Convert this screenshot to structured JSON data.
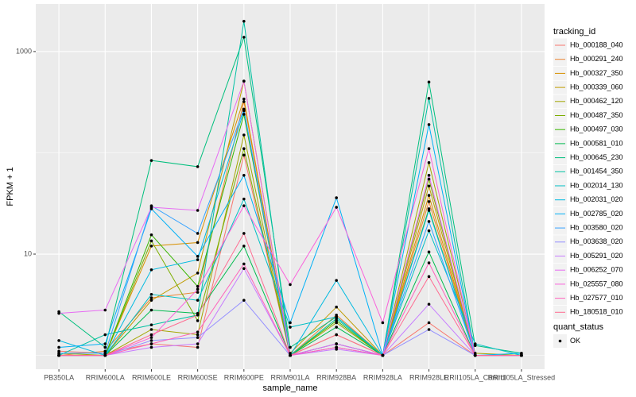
{
  "chart_data": {
    "type": "line",
    "x_label": "sample_name",
    "y_label": "FPKM + 1",
    "categories": [
      "PB350LA",
      "RRIM600LA",
      "RRIM600LE",
      "RRIM600SE",
      "RRIM600PE",
      "RRIM901LA",
      "RRIM928BA",
      "RRIM928LA",
      "RRIM928LE",
      "RRII105LA_Control",
      "RRII105LA_Stressed"
    ],
    "y_scale": "log",
    "ylim": [
      0.73,
      2950
    ],
    "yticks": [
      10,
      1000
    ],
    "grid": true,
    "point_color": "#000000",
    "legend_position": "right",
    "legend_title": "tracking_id",
    "status_legend": {
      "title": "quant_status",
      "label": "OK"
    },
    "series": [
      {
        "name": "Hb_000188_040",
        "color": "#F8766D",
        "values": [
          1.1,
          1.05,
          1.3,
          1.2,
          95,
          1.0,
          1.2,
          1.0,
          2.1,
          1.0,
          1.0
        ]
      },
      {
        "name": "Hb_000291_240",
        "color": "#EA8331",
        "values": [
          1.0,
          1.1,
          3.7,
          4.2,
          320,
          1.0,
          2.5,
          1.0,
          33,
          1.0,
          1.0
        ]
      },
      {
        "name": "Hb_000327_350",
        "color": "#D89000",
        "values": [
          1.0,
          1.0,
          12,
          13,
          340,
          1.0,
          1.6,
          1.0,
          38,
          1.0,
          1.0
        ]
      },
      {
        "name": "Hb_000339_060",
        "color": "#C09B00",
        "values": [
          1.0,
          1.0,
          3.5,
          6.5,
          510,
          1.05,
          3.0,
          1.0,
          47,
          1.0,
          1.0
        ]
      },
      {
        "name": "Hb_000462_120",
        "color": "#A3A500",
        "values": [
          1.05,
          1.0,
          1.8,
          1.6,
          150,
          1.0,
          2.1,
          1.0,
          80,
          1.05,
          1.0
        ]
      },
      {
        "name": "Hb_000487_350",
        "color": "#7CAE00",
        "values": [
          1.0,
          1.0,
          13.5,
          2.2,
          110,
          1.0,
          1.3,
          1.0,
          55,
          1.0,
          1.0
        ]
      },
      {
        "name": "Hb_000497_030",
        "color": "#39B600",
        "values": [
          1.0,
          1.0,
          15.5,
          4.8,
          240,
          1.0,
          2.2,
          1.0,
          28,
          1.0,
          1.0
        ]
      },
      {
        "name": "Hb_000581_010",
        "color": "#00BB4E",
        "values": [
          1.0,
          1.0,
          2.8,
          2.6,
          12,
          1.0,
          1.9,
          1.0,
          10.5,
          1.0,
          1.0
        ]
      },
      {
        "name": "Hb_000645_230",
        "color": "#00BF7D",
        "values": [
          2.7,
          1.2,
          84,
          73,
          1385,
          1.2,
          2.4,
          1.0,
          500,
          1.25,
          1.05
        ]
      },
      {
        "name": "Hb_001454_350",
        "color": "#00C1A3",
        "values": [
          1.0,
          1.6,
          2.0,
          2.5,
          1990,
          1.0,
          2.3,
          1.0,
          345,
          1.0,
          1.0
        ]
      },
      {
        "name": "Hb_002014_130",
        "color": "#00BFC4",
        "values": [
          1.0,
          1.0,
          4.0,
          3.5,
          35,
          1.9,
          2.4,
          1.0,
          17,
          1.3,
          1.0
        ]
      },
      {
        "name": "Hb_002031_020",
        "color": "#00BAE0",
        "values": [
          1.4,
          1.0,
          7.0,
          8.8,
          260,
          1.0,
          5.5,
          1.0,
          27,
          1.0,
          1.0
        ]
      },
      {
        "name": "Hb_002785_020",
        "color": "#00B0F6",
        "values": [
          1.2,
          1.3,
          28,
          9.5,
          60,
          2.1,
          36,
          1.0,
          190,
          1.0,
          1.05
        ]
      },
      {
        "name": "Hb_003580_020",
        "color": "#35A2FF",
        "values": [
          1.05,
          1.05,
          30,
          16,
          270,
          1.0,
          1.3,
          1.0,
          21,
          1.0,
          1.0
        ]
      },
      {
        "name": "Hb_003638_020",
        "color": "#9590FF",
        "values": [
          1.0,
          1.0,
          1.4,
          1.5,
          3.5,
          1.0,
          1.2,
          1.0,
          1.8,
          1.0,
          1.0
        ]
      },
      {
        "name": "Hb_005291_020",
        "color": "#C77CFF",
        "values": [
          1.0,
          1.0,
          1.2,
          1.3,
          7.2,
          1.0,
          1.15,
          1.0,
          3.2,
          1.0,
          1.0
        ]
      },
      {
        "name": "Hb_006252_070",
        "color": "#E76BF3",
        "values": [
          2.6,
          2.8,
          29,
          27,
          510,
          1.0,
          1.3,
          1.0,
          60,
          1.0,
          1.0
        ]
      },
      {
        "name": "Hb_025557_080",
        "color": "#FA62DB",
        "values": [
          1.0,
          1.0,
          1.5,
          4.5,
          30,
          5.0,
          29,
          2.1,
          110,
          1.0,
          1.0
        ]
      },
      {
        "name": "Hb_027577_010",
        "color": "#FF62BC",
        "values": [
          1.0,
          1.0,
          1.3,
          1.7,
          8.0,
          1.0,
          1.2,
          1.0,
          8.2,
          1.0,
          1.0
        ]
      },
      {
        "name": "Hb_180518_010",
        "color": "#FF6C91",
        "values": [
          1.0,
          1.0,
          1.6,
          2.5,
          16,
          1.0,
          1.6,
          1.0,
          6,
          1.0,
          1.0
        ]
      }
    ]
  }
}
